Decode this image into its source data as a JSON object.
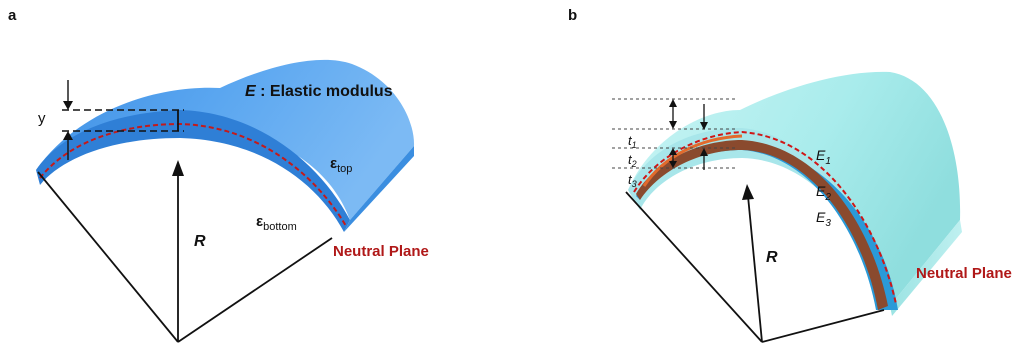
{
  "panel_a": {
    "panel_label": "a",
    "e_symbol": "E",
    "e_desc": " : Elastic modulus",
    "y_label": "y",
    "eps_top_sym": "ε",
    "eps_top_sub": "top",
    "eps_bottom_sym": "ε",
    "eps_bottom_sub": "bottom",
    "r_label": "R",
    "neutral_plane": "Neutral Plane"
  },
  "panel_b": {
    "panel_label": "b",
    "t1": "t",
    "t1_sub": "1",
    "t2": "t",
    "t2_sub": "2",
    "t3": "t",
    "t3_sub": "3",
    "e1": "E",
    "e1_sub": "1",
    "e2": "E",
    "e2_sub": "2",
    "e3": "E",
    "e3_sub": "3",
    "r_label": "R",
    "neutral_plane": "Neutral Plane"
  },
  "colors": {
    "blue_top": "#5aa6f0",
    "blue_side": "#2f7fd6",
    "cyan": "#a9ecec",
    "brown": "#8a4a2e",
    "layer3": "#2a9ad8",
    "neutral_red": "#c41a1a"
  }
}
